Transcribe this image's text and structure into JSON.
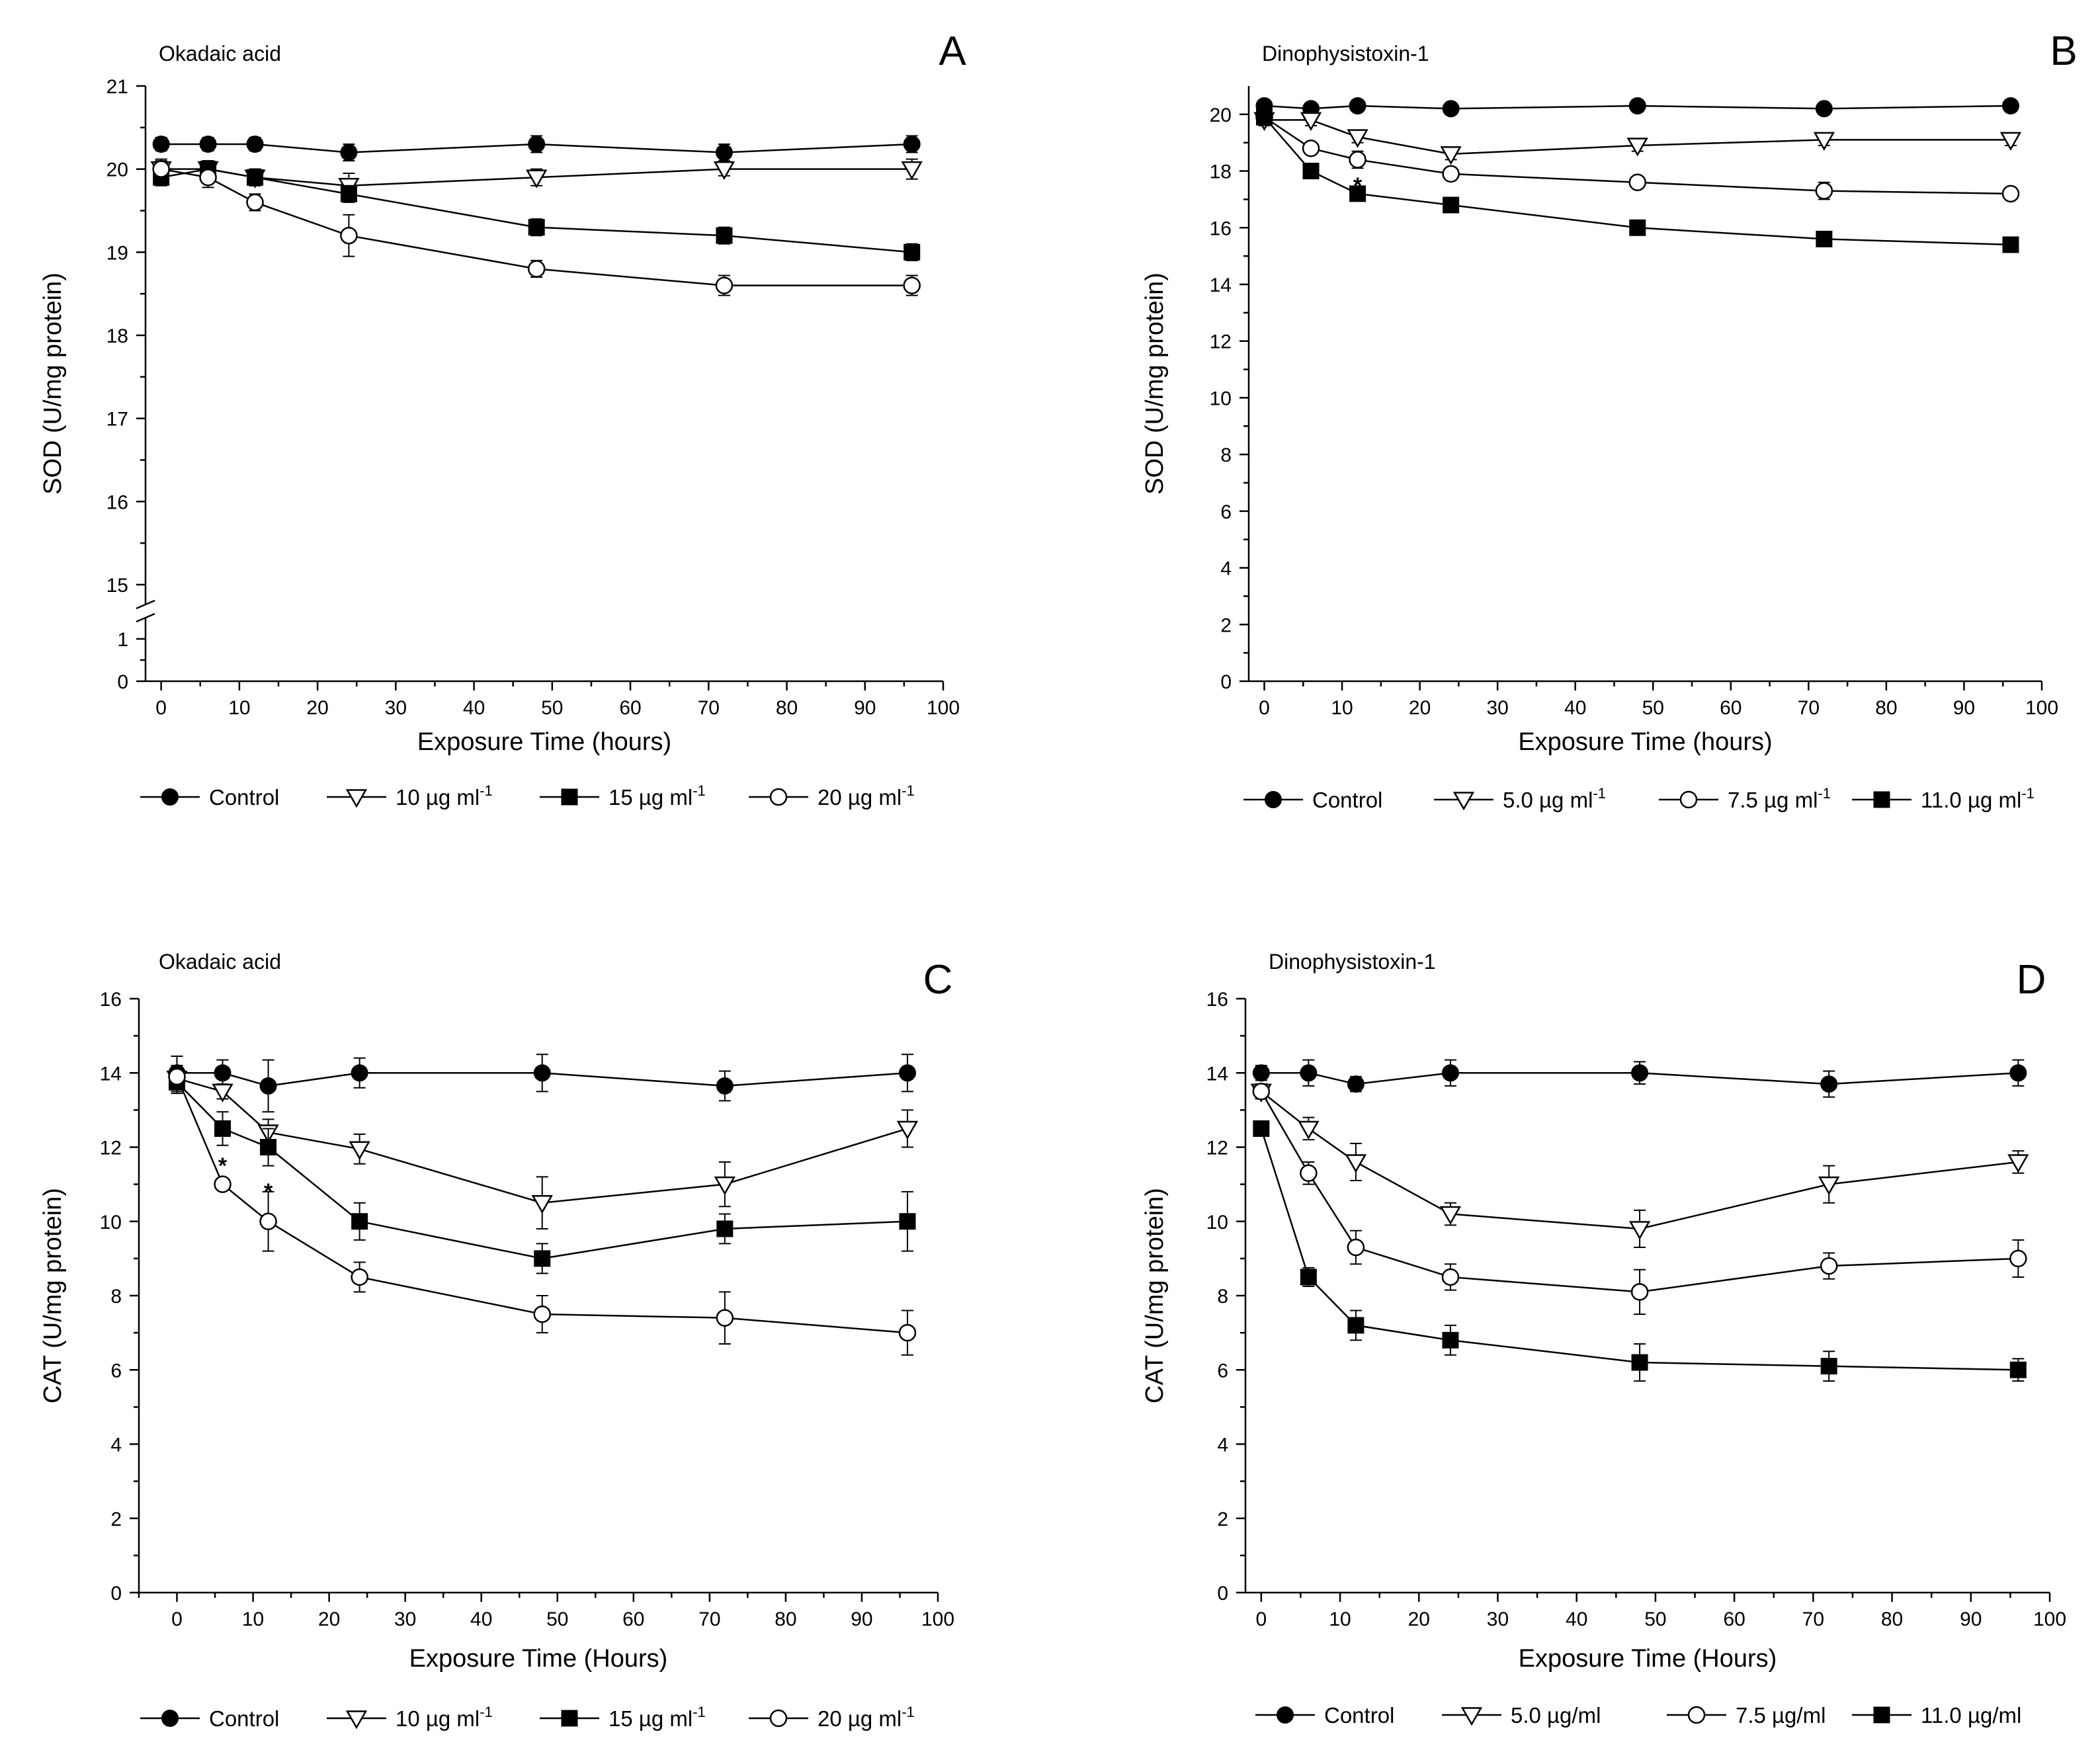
{
  "chart_data": [
    {
      "panel": "A",
      "type": "line",
      "title": "Okadaic acid",
      "xlabel": "Exposure Time (hours)",
      "ylabel": "SOD (U/mg protein)",
      "xlim": [
        -2,
        100
      ],
      "xticks": [
        0,
        10,
        20,
        30,
        40,
        50,
        60,
        70,
        80,
        90,
        100
      ],
      "ylim": [
        0,
        21
      ],
      "axis_break": {
        "lower": [
          0,
          1
        ],
        "upper": [
          15,
          21
        ]
      },
      "yticks": [
        0,
        1,
        15,
        16,
        17,
        18,
        19,
        20,
        21
      ],
      "x": [
        0,
        6,
        12,
        24,
        48,
        72,
        96
      ],
      "series": [
        {
          "name": "Control",
          "marker": "filled-circle",
          "values": [
            20.3,
            20.3,
            20.3,
            20.2,
            20.3,
            20.2,
            20.3
          ],
          "errors": [
            0.08,
            0.08,
            0.08,
            0.1,
            0.1,
            0.1,
            0.1
          ]
        },
        {
          "name": "10 µg ml",
          "sup": "-1",
          "marker": "open-triangle-down",
          "values": [
            20.0,
            20.0,
            19.9,
            19.8,
            19.9,
            20.0,
            20.0
          ],
          "errors": [
            0.1,
            0.1,
            0.1,
            0.15,
            0.1,
            0.08,
            0.12
          ]
        },
        {
          "name": "15 µg ml",
          "sup": "-1",
          "marker": "filled-square",
          "values": [
            19.9,
            20.0,
            19.9,
            19.7,
            19.3,
            19.2,
            19.0
          ],
          "errors": [
            0.1,
            0.1,
            0.1,
            0.1,
            0.1,
            0.1,
            0.1
          ]
        },
        {
          "name": "20 µg ml",
          "sup": "-1",
          "marker": "open-circle",
          "values": [
            20.0,
            19.9,
            19.6,
            19.2,
            18.8,
            18.6,
            18.6
          ],
          "errors": [
            0.12,
            0.12,
            0.1,
            0.25,
            0.1,
            0.12,
            0.12
          ]
        }
      ],
      "annotations": []
    },
    {
      "panel": "B",
      "type": "line",
      "title": "Dinophysistoxin-1",
      "xlabel": "Exposure Time (hours)",
      "ylabel": "SOD (U/mg protein)",
      "xlim": [
        -2,
        100
      ],
      "xticks": [
        0,
        10,
        20,
        30,
        40,
        50,
        60,
        70,
        80,
        90,
        100
      ],
      "ylim": [
        0,
        21
      ],
      "yticks": [
        0,
        2,
        4,
        6,
        8,
        10,
        12,
        14,
        16,
        18,
        20
      ],
      "x": [
        0,
        6,
        12,
        24,
        48,
        72,
        96
      ],
      "series": [
        {
          "name": "Control",
          "marker": "filled-circle",
          "values": [
            20.3,
            20.2,
            20.3,
            20.2,
            20.3,
            20.2,
            20.3
          ],
          "errors": [
            0.15,
            0.15,
            0.15,
            0.15,
            0.2,
            0.15,
            0.15
          ]
        },
        {
          "name": "5.0 µg ml",
          "sup": "-1",
          "marker": "open-triangle-down",
          "values": [
            19.8,
            19.8,
            19.2,
            18.6,
            18.9,
            19.1,
            19.1
          ],
          "errors": [
            0.2,
            0.2,
            0.2,
            0.2,
            0.2,
            0.2,
            0.2
          ]
        },
        {
          "name": "7.5 µg ml",
          "sup": "-1",
          "marker": "open-circle",
          "values": [
            19.9,
            18.8,
            18.4,
            17.9,
            17.6,
            17.3,
            17.2
          ],
          "errors": [
            0.2,
            0.2,
            0.3,
            0.2,
            0.2,
            0.3,
            0.2
          ]
        },
        {
          "name": "11.0 µg ml",
          "sup": "-1",
          "marker": "filled-square",
          "values": [
            19.9,
            18.0,
            17.2,
            16.8,
            16.0,
            15.6,
            15.4
          ],
          "errors": [
            0.2,
            0.2,
            0.2,
            0.1,
            0.2,
            0.1,
            0.1
          ]
        }
      ],
      "annotations": [
        {
          "text": "*",
          "x": 12,
          "y": 17.55
        }
      ]
    },
    {
      "panel": "C",
      "type": "line",
      "title": "Okadaic acid",
      "xlabel": "Exposure Time (Hours)",
      "ylabel": "CAT (U/mg protein)",
      "xlim": [
        -5,
        100
      ],
      "xticks": [
        0,
        10,
        20,
        30,
        40,
        50,
        60,
        70,
        80,
        90,
        100
      ],
      "ylim": [
        0,
        16
      ],
      "yticks": [
        0,
        2,
        4,
        6,
        8,
        10,
        12,
        14,
        16
      ],
      "x": [
        0,
        6,
        12,
        24,
        48,
        72,
        96
      ],
      "series": [
        {
          "name": "Control",
          "marker": "filled-circle",
          "values": [
            14.0,
            14.0,
            13.65,
            14.0,
            14.0,
            13.65,
            14.0
          ],
          "errors": [
            0.45,
            0.35,
            0.7,
            0.4,
            0.5,
            0.4,
            0.5
          ]
        },
        {
          "name": "10 µg ml",
          "sup": "-1",
          "marker": "open-triangle-down",
          "values": [
            13.85,
            13.5,
            12.4,
            11.95,
            10.5,
            11.0,
            12.5
          ],
          "errors": [
            0.35,
            0.2,
            0.35,
            0.4,
            0.7,
            0.6,
            0.5
          ]
        },
        {
          "name": "15 µg ml",
          "sup": "-1",
          "marker": "filled-square",
          "values": [
            13.75,
            12.5,
            12.0,
            10.0,
            9.0,
            9.8,
            10.0
          ],
          "errors": [
            0.3,
            0.45,
            0.5,
            0.5,
            0.4,
            0.4,
            0.8
          ]
        },
        {
          "name": "20 µg ml",
          "sup": "-1",
          "marker": "open-circle",
          "values": [
            13.9,
            11.0,
            10.0,
            8.5,
            7.5,
            7.4,
            7.0
          ],
          "errors": [
            0.3,
            0.15,
            0.8,
            0.4,
            0.5,
            0.7,
            0.6
          ]
        }
      ],
      "annotations": [
        {
          "text": "*",
          "x": 6,
          "y": 11.55
        },
        {
          "text": "*",
          "x": 12,
          "y": 10.85
        }
      ]
    },
    {
      "panel": "D",
      "type": "line",
      "title": "Dinophysistoxin-1",
      "xlabel": "Exposure Time (Hours)",
      "ylabel": "CAT (U/mg protein)",
      "xlim": [
        -2,
        100
      ],
      "xticks": [
        0,
        10,
        20,
        30,
        40,
        50,
        60,
        70,
        80,
        90,
        100
      ],
      "ylim": [
        0,
        16
      ],
      "yticks": [
        0,
        2,
        4,
        6,
        8,
        10,
        12,
        14,
        16
      ],
      "x": [
        0,
        6,
        12,
        24,
        48,
        72,
        96
      ],
      "series": [
        {
          "name": "Control",
          "marker": "filled-circle",
          "values": [
            14.0,
            14.0,
            13.7,
            14.0,
            14.0,
            13.7,
            14.0
          ],
          "errors": [
            0.2,
            0.35,
            0.2,
            0.35,
            0.3,
            0.35,
            0.35
          ]
        },
        {
          "name": "5.0 µg/ml",
          "sup": "",
          "marker": "open-triangle-down",
          "values": [
            13.5,
            12.5,
            11.6,
            10.2,
            9.8,
            11.0,
            11.6
          ],
          "errors": [
            0.2,
            0.3,
            0.5,
            0.3,
            0.5,
            0.5,
            0.3
          ]
        },
        {
          "name": "7.5 µg/ml",
          "sup": "",
          "marker": "open-circle",
          "values": [
            13.5,
            11.3,
            9.3,
            8.5,
            8.1,
            8.8,
            9.0
          ],
          "errors": [
            0.2,
            0.3,
            0.45,
            0.35,
            0.6,
            0.35,
            0.5
          ]
        },
        {
          "name": "11.0 µg/ml",
          "sup": "",
          "marker": "filled-square",
          "values": [
            12.5,
            8.5,
            7.2,
            6.8,
            6.2,
            6.1,
            6.0
          ],
          "errors": [
            0.15,
            0.25,
            0.4,
            0.4,
            0.5,
            0.4,
            0.3
          ]
        }
      ],
      "annotations": []
    }
  ]
}
